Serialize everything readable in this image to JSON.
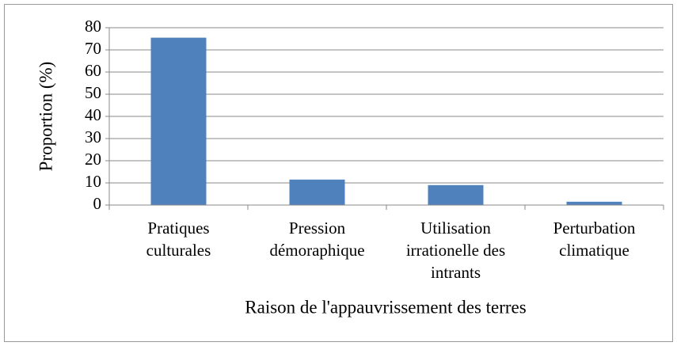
{
  "chart_data": {
    "type": "bar",
    "xlabel": "Raison de l'appauvrissement des terres",
    "ylabel": "Proportion (%)",
    "categories": [
      [
        "Pratiques",
        "culturales"
      ],
      [
        "Pression",
        "démoraphique"
      ],
      [
        "Utilisation",
        "irrationelle des",
        "intrants"
      ],
      [
        "Perturbation",
        "climatique"
      ]
    ],
    "values": [
      75.5,
      11.5,
      9,
      1.5
    ],
    "color": "#4f81bd",
    "ylim": [
      0,
      80
    ],
    "yticks": [
      0,
      10,
      20,
      30,
      40,
      50,
      60,
      70,
      80
    ],
    "grid": true
  }
}
